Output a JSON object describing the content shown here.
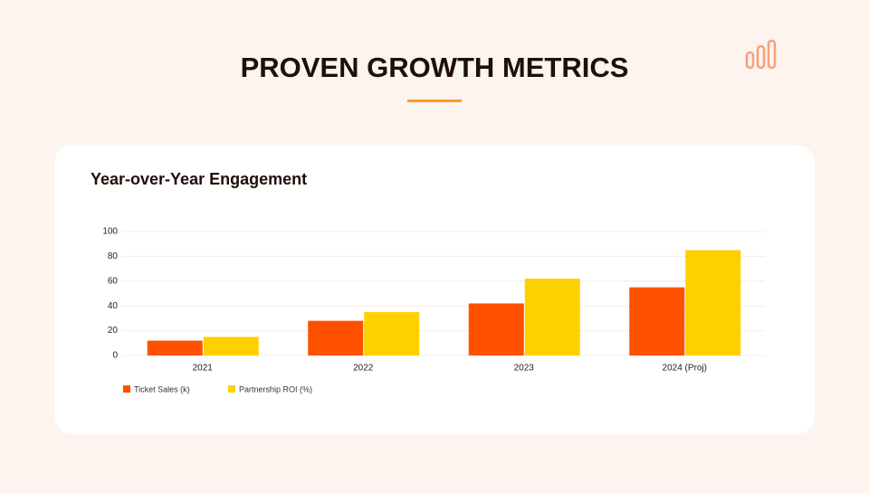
{
  "header": {
    "title": "PROVEN GROWTH METRICS"
  },
  "chart_data": {
    "type": "bar",
    "title": "Year-over-Year Engagement",
    "categories": [
      "2021",
      "2022",
      "2023",
      "2024 (Proj)"
    ],
    "series": [
      {
        "name": "Ticket Sales (k)",
        "color": "#ff5000",
        "values": [
          12,
          28,
          42,
          55
        ]
      },
      {
        "name": "Partnership ROI (%)",
        "color": "#ffd000",
        "values": [
          15,
          35,
          62,
          85
        ]
      }
    ],
    "ylim": [
      0,
      100
    ],
    "yticks": [
      0,
      20,
      40,
      60,
      80,
      100
    ],
    "grid": true,
    "legend": "bottom-left"
  }
}
